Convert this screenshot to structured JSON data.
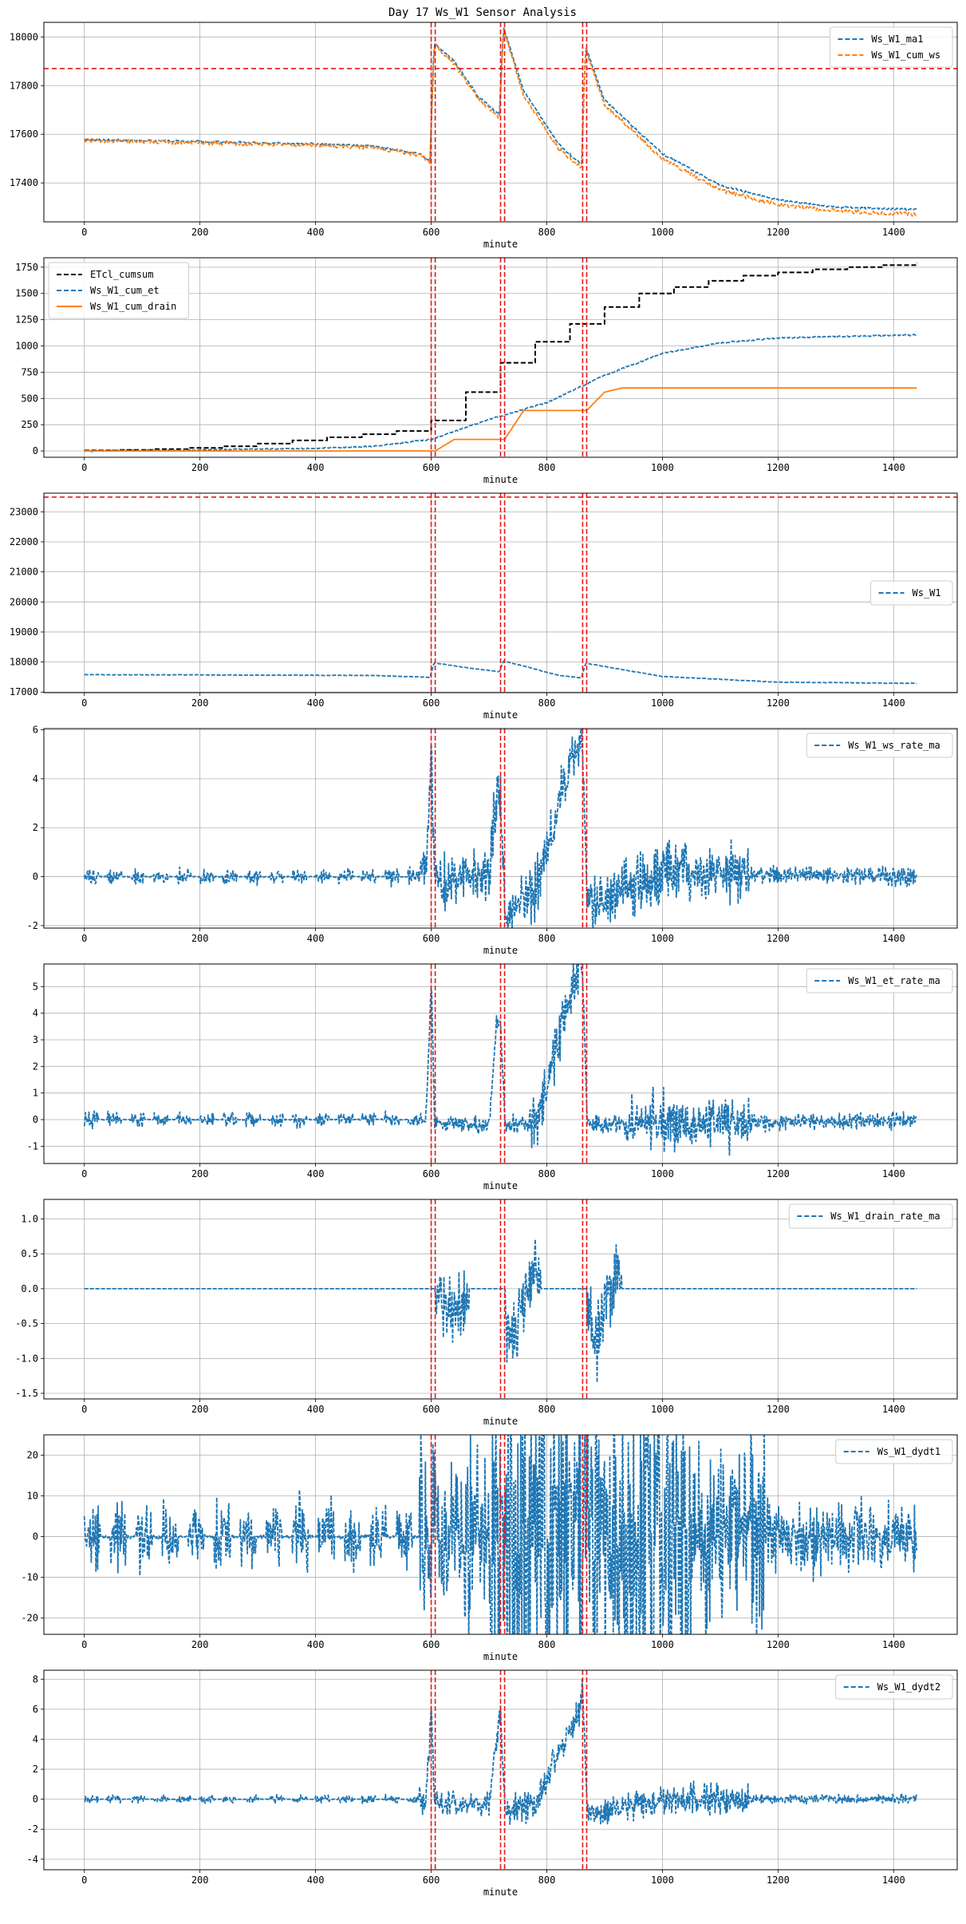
{
  "figure": {
    "title": "Day 17 Ws_W1 Sensor Analysis"
  },
  "colors": {
    "blue": "#1f77b4",
    "orange": "#ff7f0e",
    "black": "#000000",
    "red": "#e31a1c",
    "grid": "#b0b0b0"
  },
  "event_lines": [
    600,
    607,
    720,
    727,
    862,
    869
  ],
  "chart_data": [
    {
      "type": "line",
      "id": "ma1",
      "xlabel": "minute",
      "xlim": [
        -70,
        1510
      ],
      "ylim": [
        17240,
        18060
      ],
      "xticks": [
        0,
        200,
        400,
        600,
        800,
        1000,
        1200,
        1400
      ],
      "yticks": [
        17400,
        17600,
        17800,
        18000
      ],
      "hline": 17870,
      "legend_position": "upper right",
      "series": [
        {
          "name": "Ws_W1_ma1",
          "color": "blue",
          "style": "dashed",
          "noise": 4,
          "x": [
            0,
            200,
            400,
            500,
            580,
            598,
            605,
            640,
            680,
            718,
            725,
            760,
            820,
            860,
            867,
            900,
            1000,
            1100,
            1200,
            1300,
            1440
          ],
          "y": [
            17578,
            17570,
            17560,
            17552,
            17520,
            17490,
            17975,
            17900,
            17760,
            17680,
            18040,
            17780,
            17560,
            17475,
            17960,
            17740,
            17520,
            17390,
            17330,
            17300,
            17290
          ]
        },
        {
          "name": "Ws_W1_cum_ws",
          "color": "orange",
          "style": "dashed",
          "noise": 8,
          "x": [
            0,
            200,
            400,
            500,
            580,
            598,
            605,
            640,
            680,
            718,
            725,
            760,
            820,
            860,
            867,
            900,
            1000,
            1100,
            1200,
            1300,
            1440
          ],
          "y": [
            17575,
            17565,
            17555,
            17545,
            17515,
            17485,
            17970,
            17890,
            17750,
            17665,
            18035,
            17760,
            17540,
            17460,
            17950,
            17720,
            17500,
            17370,
            17310,
            17285,
            17270
          ]
        }
      ]
    },
    {
      "type": "line",
      "id": "cum",
      "xlabel": "minute",
      "xlim": [
        -70,
        1510
      ],
      "ylim": [
        -60,
        1840
      ],
      "xticks": [
        0,
        200,
        400,
        600,
        800,
        1000,
        1200,
        1400
      ],
      "yticks": [
        0,
        250,
        500,
        750,
        1000,
        1250,
        1500,
        1750
      ],
      "legend_position": "upper left",
      "series": [
        {
          "name": "ETcl_cumsum",
          "color": "black",
          "style": "dashed",
          "step": true,
          "x": [
            0,
            60,
            120,
            180,
            240,
            300,
            360,
            420,
            480,
            540,
            600,
            660,
            720,
            780,
            840,
            900,
            960,
            1020,
            1080,
            1140,
            1200,
            1260,
            1320,
            1380,
            1440
          ],
          "y": [
            5,
            10,
            18,
            30,
            45,
            70,
            100,
            130,
            160,
            190,
            290,
            560,
            840,
            1040,
            1210,
            1370,
            1500,
            1560,
            1620,
            1670,
            1700,
            1730,
            1750,
            1770,
            1790
          ]
        },
        {
          "name": "Ws_W1_cum_et",
          "color": "blue",
          "style": "dashed",
          "noise": 6,
          "x": [
            0,
            200,
            400,
            500,
            600,
            700,
            800,
            900,
            1000,
            1100,
            1200,
            1300,
            1440
          ],
          "y": [
            0,
            10,
            25,
            45,
            110,
            300,
            460,
            720,
            930,
            1030,
            1075,
            1090,
            1105
          ]
        },
        {
          "name": "Ws_W1_cum_drain",
          "color": "orange",
          "style": "solid",
          "noise": 0,
          "x": [
            0,
            600,
            607,
            640,
            720,
            727,
            760,
            862,
            869,
            900,
            930,
            1440
          ],
          "y": [
            0,
            0,
            0,
            110,
            110,
            110,
            385,
            385,
            385,
            560,
            600,
            600
          ]
        }
      ]
    },
    {
      "type": "line",
      "id": "ws",
      "xlabel": "minute",
      "xlim": [
        -70,
        1510
      ],
      "ylim": [
        16980,
        23620
      ],
      "xticks": [
        0,
        200,
        400,
        600,
        800,
        1000,
        1200,
        1400
      ],
      "yticks": [
        17000,
        18000,
        19000,
        20000,
        21000,
        22000,
        23000
      ],
      "hline": 23490,
      "legend_position": "center right",
      "series": [
        {
          "name": "Ws_W1",
          "color": "blue",
          "style": "dashed",
          "noise": 8,
          "x": [
            0,
            200,
            400,
            500,
            598,
            605,
            680,
            718,
            725,
            820,
            860,
            867,
            1000,
            1200,
            1440
          ],
          "y": [
            17578,
            17570,
            17560,
            17552,
            17490,
            17975,
            17760,
            17680,
            18040,
            17560,
            17475,
            17960,
            17520,
            17330,
            17290
          ]
        }
      ]
    },
    {
      "type": "line",
      "id": "ws_rate",
      "xlabel": "minute",
      "xlim": [
        -70,
        1510
      ],
      "ylim": [
        -2.1,
        6.05
      ],
      "xticks": [
        0,
        200,
        400,
        600,
        800,
        1000,
        1200,
        1400
      ],
      "yticks": [
        -2,
        0,
        2,
        4,
        6
      ],
      "legend_position": "upper right",
      "series": [
        {
          "name": "Ws_W1_ws_rate_ma",
          "color": "blue",
          "style": "dashed",
          "noise_profile": "rate",
          "noise_scale": 0.6,
          "x": [
            0,
            590,
            596,
            600,
            606,
            700,
            714,
            720,
            728,
            780,
            856,
            862,
            870,
            1000,
            1440
          ],
          "y": [
            0,
            0,
            2.5,
            5.3,
            -0.2,
            -0.2,
            3.8,
            3.5,
            -1.5,
            -0.5,
            5.8,
            5.5,
            -1.3,
            0.2,
            0
          ]
        }
      ]
    },
    {
      "type": "line",
      "id": "et_rate",
      "xlabel": "minute",
      "xlim": [
        -70,
        1510
      ],
      "ylim": [
        -1.65,
        5.85
      ],
      "xticks": [
        0,
        200,
        400,
        600,
        800,
        1000,
        1200,
        1400
      ],
      "yticks": [
        -1,
        0,
        1,
        2,
        3,
        4,
        5
      ],
      "legend_position": "upper right",
      "series": [
        {
          "name": "Ws_W1_et_rate_ma",
          "color": "blue",
          "style": "dashed",
          "noise_profile": "et",
          "noise_scale": 0.5,
          "x": [
            0,
            590,
            596,
            600,
            606,
            700,
            714,
            720,
            728,
            780,
            856,
            862,
            870,
            930,
            1440
          ],
          "y": [
            0,
            0,
            2.5,
            5.3,
            -0.1,
            -0.2,
            3.8,
            3.5,
            -0.2,
            -0.2,
            5.8,
            5.5,
            -0.2,
            -0.2,
            0
          ]
        }
      ]
    },
    {
      "type": "line",
      "id": "drain_rate",
      "xlabel": "minute",
      "xlim": [
        -70,
        1510
      ],
      "ylim": [
        -1.58,
        1.28
      ],
      "xticks": [
        0,
        200,
        400,
        600,
        800,
        1000,
        1200,
        1400
      ],
      "yticks": [
        -1.5,
        -1.0,
        -0.5,
        0.0,
        0.5,
        1.0
      ],
      "yticklabels": [
        "-1.5",
        "-1.0",
        "-0.5",
        "0.0",
        "0.5",
        "1.0"
      ],
      "legend_position": "upper right",
      "series": [
        {
          "name": "Ws_W1_drain_rate_ma",
          "color": "blue",
          "style": "dashed",
          "noise_profile": "drain",
          "noise_scale": 0.25,
          "x": [
            0,
            606,
            615,
            640,
            660,
            666,
            727,
            735,
            760,
            780,
            790,
            869,
            880,
            900,
            920,
            930,
            1440
          ],
          "y": [
            0,
            0,
            -0.3,
            -0.3,
            -0.1,
            0,
            0,
            -0.8,
            -0.3,
            0.3,
            0,
            0,
            -0.9,
            -0.2,
            0.3,
            0,
            0
          ]
        }
      ]
    },
    {
      "type": "line",
      "id": "dydt1",
      "xlabel": "minute",
      "xlim": [
        -70,
        1510
      ],
      "ylim": [
        -24,
        25
      ],
      "xticks": [
        0,
        200,
        400,
        600,
        800,
        1000,
        1200,
        1400
      ],
      "yticks": [
        -20,
        -10,
        0,
        10,
        20
      ],
      "legend_position": "upper right",
      "series": [
        {
          "name": "Ws_W1_dydt1",
          "color": "blue",
          "style": "dashed",
          "noise_profile": "dydt1",
          "noise_scale": 1.5,
          "x": [
            0,
            1440
          ],
          "y": [
            0,
            0
          ]
        }
      ]
    },
    {
      "type": "line",
      "id": "dydt2",
      "xlabel": "minute",
      "xlim": [
        -70,
        1510
      ],
      "ylim": [
        -4.7,
        8.6
      ],
      "xticks": [
        0,
        200,
        400,
        600,
        800,
        1000,
        1200,
        1400
      ],
      "yticks": [
        -4,
        -2,
        0,
        2,
        4,
        6,
        8
      ],
      "legend_position": "upper right",
      "series": [
        {
          "name": "Ws_W1_dydt2",
          "color": "blue",
          "style": "dashed",
          "noise_profile": "rate",
          "noise_scale": 0.5,
          "x": [
            0,
            590,
            596,
            600,
            606,
            700,
            714,
            720,
            728,
            780,
            856,
            862,
            870,
            1000,
            1440
          ],
          "y": [
            0,
            0,
            3,
            6,
            -0.3,
            -0.3,
            4,
            6.2,
            -1,
            -0.3,
            6,
            7.5,
            -1,
            0,
            0
          ]
        }
      ]
    }
  ]
}
